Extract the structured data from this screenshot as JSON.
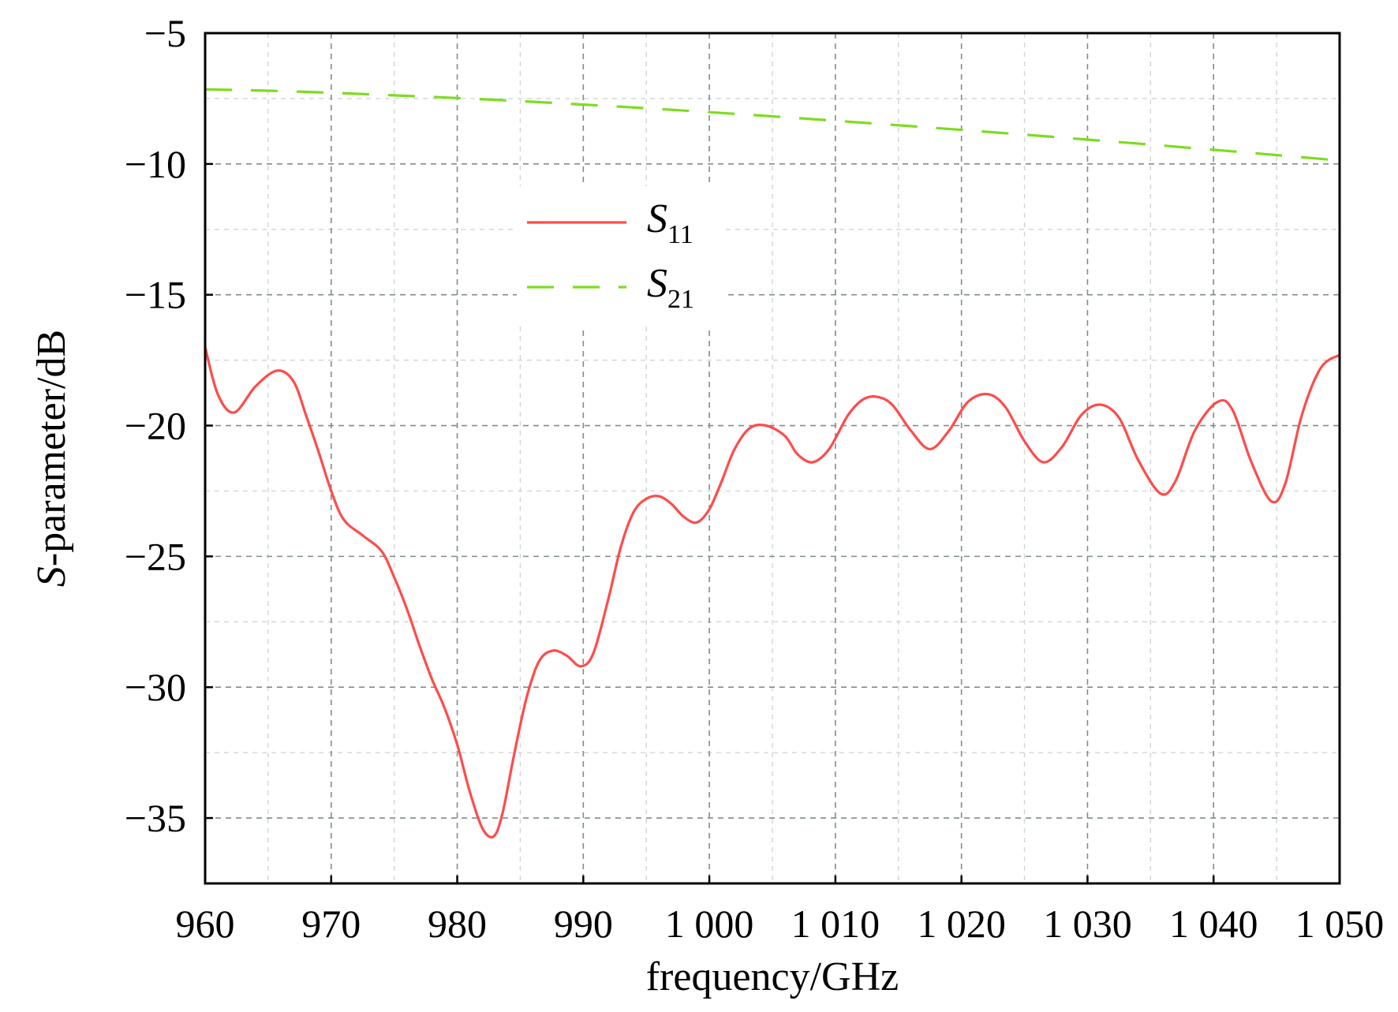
{
  "chart_data": {
    "type": "line",
    "xlabel": "frequency/GHz",
    "ylabel_prefix": "S",
    "ylabel_suffix": "-parameter/dB",
    "xlim": [
      960,
      1050
    ],
    "ylim": [
      -37.5,
      -5
    ],
    "grid": true,
    "legend_placement": "upper-center",
    "x_ticks": [
      960,
      970,
      980,
      990,
      1000,
      1010,
      1020,
      1030,
      1040,
      1050
    ],
    "x_tick_labels": [
      "960",
      "970",
      "980",
      "990",
      "1 000",
      "1 010",
      "1 020",
      "1 030",
      "1 040",
      "1 050"
    ],
    "y_ticks": [
      -35,
      -30,
      -25,
      -20,
      -15,
      -10,
      -5
    ],
    "y_tick_labels": [
      "−35",
      "−30",
      "−25",
      "−20",
      "−15",
      "−10",
      "−5"
    ],
    "series": [
      {
        "name": "S11",
        "name_main": "S",
        "name_sub": "11",
        "color": "#ff4b4b",
        "style": "solid",
        "x": [
          960,
          961,
          962.3,
          964,
          965.7,
          967,
          968,
          969,
          970,
          971,
          972.5,
          974,
          975,
          976,
          977,
          978,
          979,
          980,
          981,
          982,
          982.9,
          983.6,
          984.5,
          985.5,
          986.5,
          987.6,
          988.7,
          989.8,
          990.8,
          992,
          993,
          994,
          995,
          996,
          997,
          998,
          999,
          1000,
          1001,
          1002,
          1003.2,
          1004.5,
          1006,
          1007,
          1008.2,
          1009.5,
          1011,
          1012.2,
          1013.3,
          1014.5,
          1016,
          1017.5,
          1019,
          1020.5,
          1022.1,
          1023.5,
          1025,
          1026.5,
          1028,
          1029.5,
          1031,
          1032.5,
          1034,
          1035.8,
          1037,
          1038.5,
          1040.3,
          1041.5,
          1043,
          1044.6,
          1045.7,
          1047,
          1048.5,
          1050
        ],
        "y": [
          -17,
          -18.8,
          -19.5,
          -18.5,
          -17.9,
          -18.3,
          -19.6,
          -21,
          -22.5,
          -23.6,
          -24.2,
          -24.8,
          -25.8,
          -27,
          -28.4,
          -29.7,
          -30.8,
          -32.2,
          -34,
          -35.4,
          -35.7,
          -34.8,
          -32.6,
          -30.4,
          -29,
          -28.6,
          -28.8,
          -29.2,
          -28.7,
          -26.6,
          -24.6,
          -23.3,
          -22.8,
          -22.7,
          -23,
          -23.5,
          -23.7,
          -23.2,
          -22.1,
          -20.9,
          -20.1,
          -20,
          -20.4,
          -21.1,
          -21.4,
          -20.9,
          -19.6,
          -19,
          -18.9,
          -19.2,
          -20.2,
          -20.9,
          -20.2,
          -19.1,
          -18.8,
          -19.3,
          -20.6,
          -21.4,
          -20.8,
          -19.6,
          -19.2,
          -19.7,
          -21.3,
          -22.6,
          -22.1,
          -20.2,
          -19.1,
          -19.4,
          -21.4,
          -22.9,
          -22.2,
          -19.6,
          -17.8,
          -17.3
        ]
      },
      {
        "name": "S21",
        "name_main": "S",
        "name_sub": "21",
        "color": "#7ddc1f",
        "style": "dashed",
        "x": [
          960,
          965,
          970,
          975,
          980,
          985,
          990,
          995,
          1000,
          1005,
          1010,
          1015,
          1020,
          1025,
          1030,
          1035,
          1040,
          1045,
          1050
        ],
        "y": [
          -7.15,
          -7.2,
          -7.28,
          -7.38,
          -7.48,
          -7.6,
          -7.73,
          -7.87,
          -8.02,
          -8.18,
          -8.35,
          -8.52,
          -8.7,
          -8.88,
          -9.07,
          -9.26,
          -9.46,
          -9.66,
          -9.87
        ]
      }
    ]
  }
}
